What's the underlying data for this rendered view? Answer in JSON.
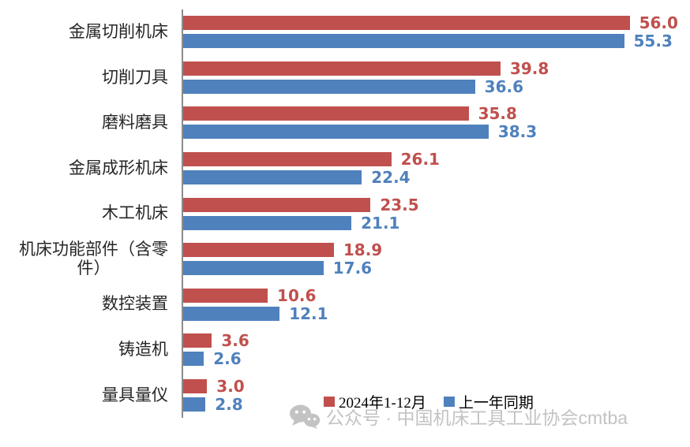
{
  "chart_data": {
    "type": "bar",
    "orientation": "horizontal",
    "title": "",
    "categories": [
      "金属切削机床",
      "切削刀具",
      "磨料磨具",
      "金属成形机床",
      "木工机床",
      "机床功能部件（含零件）",
      "数控装置",
      "铸造机",
      "量具量仪"
    ],
    "category_label_lines": [
      [
        "金属切削机床"
      ],
      [
        "切削刀具"
      ],
      [
        "磨料磨具"
      ],
      [
        "金属成形机床"
      ],
      [
        "木工机床"
      ],
      [
        "机床功能部件（含零",
        "件）"
      ],
      [
        "数控装置"
      ],
      [
        "铸造机"
      ],
      [
        "量具量仪"
      ]
    ],
    "series": [
      {
        "name": "2024年1-12月",
        "color": "#C0504D",
        "values": [
          56.0,
          39.8,
          35.8,
          26.1,
          23.5,
          18.9,
          10.6,
          3.6,
          3.0
        ]
      },
      {
        "name": "上一年同期",
        "color": "#4F81BD",
        "values": [
          55.3,
          36.6,
          38.3,
          22.4,
          21.1,
          17.6,
          12.1,
          2.6,
          2.8
        ]
      }
    ],
    "value_label_format": "0.0",
    "xlim": [
      0,
      60
    ],
    "grid": false,
    "legend_position": "bottom"
  },
  "legend": {
    "items": [
      {
        "label": "2024年1-12月",
        "color": "#C0504D"
      },
      {
        "label": "上一年同期",
        "color": "#4F81BD"
      }
    ]
  },
  "watermark": {
    "icon": "wechat-icon",
    "text": "公众号 · 中国机床工具工业协会cmtba",
    "color": "#c3c3c3"
  },
  "colors": {
    "series_current": "#C0504D",
    "series_previous": "#4F81BD",
    "axis_line": "#8c8c8c",
    "category_text": "#262626"
  }
}
